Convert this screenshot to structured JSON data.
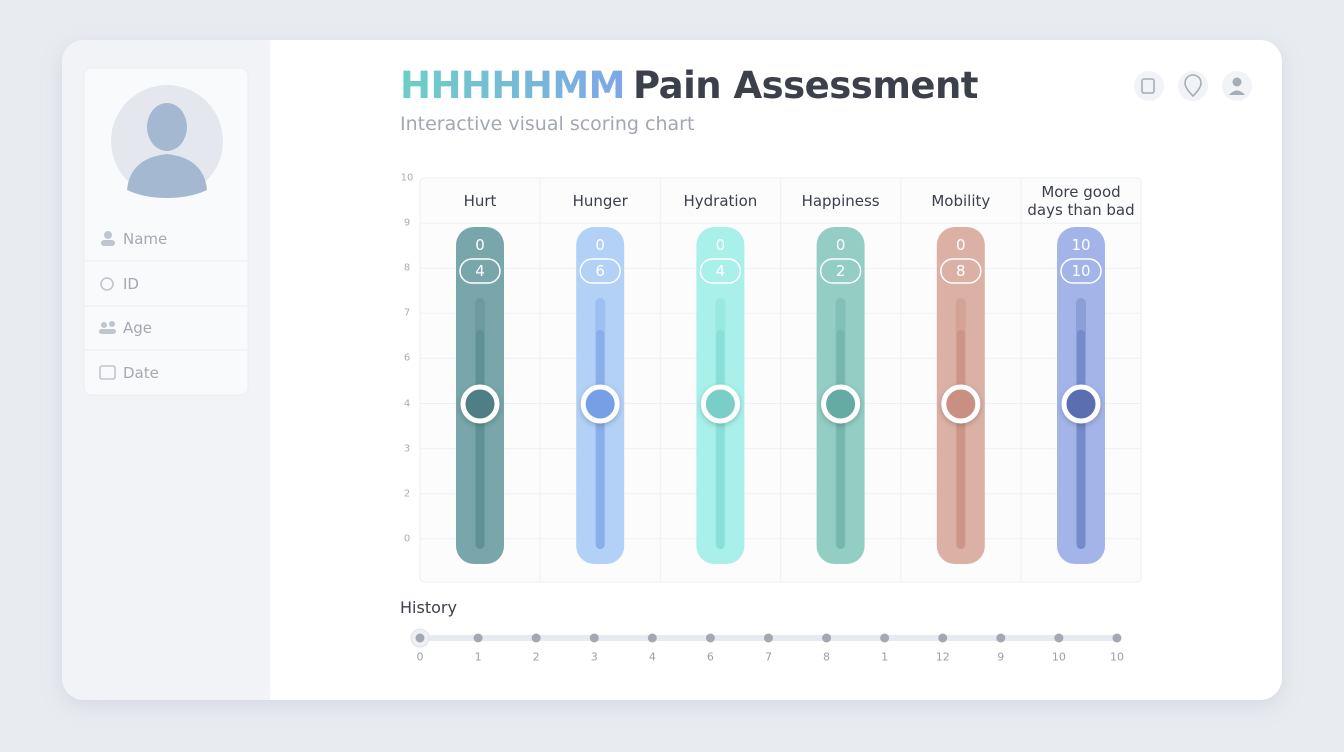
{
  "header": {
    "brand": "HHHHHMM",
    "title": "Pain Assessment",
    "subtitle": "Interactive visual scoring chart"
  },
  "profile": {
    "fields": [
      "Name",
      "ID",
      "Age",
      "Date"
    ]
  },
  "scale": [
    10,
    9,
    8,
    7,
    6,
    4,
    3,
    2,
    0
  ],
  "columns": [
    {
      "label": "Hurt",
      "top": 0,
      "score": 4
    },
    {
      "label": "Hunger",
      "top": 0,
      "score": 6
    },
    {
      "label": "Hydration",
      "top": 0,
      "score": 4
    },
    {
      "label": "Happiness",
      "top": 0,
      "score": 2
    },
    {
      "label": "Mobility",
      "top": 0,
      "score": 8
    },
    {
      "label": "More good days than bad",
      "top": 10,
      "score": 10
    }
  ],
  "history": {
    "label": "History",
    "points": [
      0,
      1,
      2,
      3,
      4,
      6,
      7,
      8,
      1,
      12,
      9,
      10,
      10
    ]
  }
}
